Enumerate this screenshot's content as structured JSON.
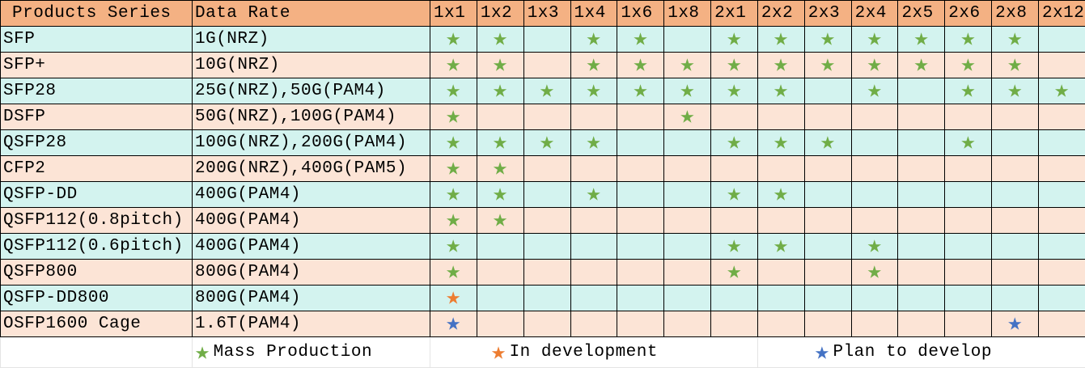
{
  "header": {
    "series": "Products Series",
    "rate": "Data Rate",
    "columns": [
      "1x1",
      "1x2",
      "1x3",
      "1x4",
      "1x6",
      "1x8",
      "2x1",
      "2x2",
      "2x3",
      "2x4",
      "2x5",
      "2x6",
      "2x8",
      "2x12"
    ]
  },
  "colors": {
    "mass": "#70ad47",
    "dev": "#ed7d31",
    "plan": "#4472c4"
  },
  "rows": [
    {
      "series": "SFP",
      "rate": "1G(NRZ)",
      "stars": {
        "1x1": "mass",
        "1x2": "mass",
        "1x4": "mass",
        "1x6": "mass",
        "2x1": "mass",
        "2x2": "mass",
        "2x3": "mass",
        "2x4": "mass",
        "2x5": "mass",
        "2x6": "mass",
        "2x8": "mass"
      }
    },
    {
      "series": "SFP+",
      "rate": "10G(NRZ)",
      "stars": {
        "1x1": "mass",
        "1x2": "mass",
        "1x4": "mass",
        "1x6": "mass",
        "1x8": "mass",
        "2x1": "mass",
        "2x2": "mass",
        "2x3": "mass",
        "2x4": "mass",
        "2x5": "mass",
        "2x6": "mass",
        "2x8": "mass"
      }
    },
    {
      "series": "SFP28",
      "rate": "25G(NRZ),50G(PAM4)",
      "stars": {
        "1x1": "mass",
        "1x2": "mass",
        "1x3": "mass",
        "1x4": "mass",
        "1x6": "mass",
        "1x8": "mass",
        "2x1": "mass",
        "2x2": "mass",
        "2x4": "mass",
        "2x6": "mass",
        "2x8": "mass",
        "2x12": "mass"
      }
    },
    {
      "series": "DSFP",
      "rate": "50G(NRZ),100G(PAM4)",
      "stars": {
        "1x1": "mass",
        "1x8": "mass"
      }
    },
    {
      "series": "QSFP28",
      "rate": "100G(NRZ),200G(PAM4)",
      "stars": {
        "1x1": "mass",
        "1x2": "mass",
        "1x3": "mass",
        "1x4": "mass",
        "2x1": "mass",
        "2x2": "mass",
        "2x3": "mass",
        "2x6": "mass"
      }
    },
    {
      "series": "CFP2",
      "rate": "200G(NRZ),400G(PAM5)",
      "stars": {
        "1x1": "mass",
        "1x2": "mass"
      }
    },
    {
      "series": "QSFP-DD",
      "rate": "400G(PAM4)",
      "stars": {
        "1x1": "mass",
        "1x2": "mass",
        "1x4": "mass",
        "2x1": "mass",
        "2x2": "mass"
      }
    },
    {
      "series": "QSFP112(0.8pitch)",
      "rate": "400G(PAM4)",
      "stars": {
        "1x1": "mass",
        "1x2": "mass"
      }
    },
    {
      "series": "QSFP112(0.6pitch)",
      "rate": "400G(PAM4)",
      "stars": {
        "1x1": "mass",
        "2x1": "mass",
        "2x2": "mass",
        "2x4": "mass"
      }
    },
    {
      "series": "QSFP800",
      "rate": "800G(PAM4)",
      "stars": {
        "1x1": "mass",
        "2x1": "mass",
        "2x4": "mass"
      }
    },
    {
      "series": "QSFP-DD800",
      "rate": "800G(PAM4)",
      "stars": {
        "1x1": "dev"
      }
    },
    {
      "series": "OSFP1600 Cage",
      "rate": "1.6T(PAM4)",
      "stars": {
        "1x1": "plan",
        "2x8": "plan"
      }
    }
  ],
  "legend": {
    "mass": "Mass Production",
    "dev": "In development",
    "plan": "Plan to develop"
  }
}
